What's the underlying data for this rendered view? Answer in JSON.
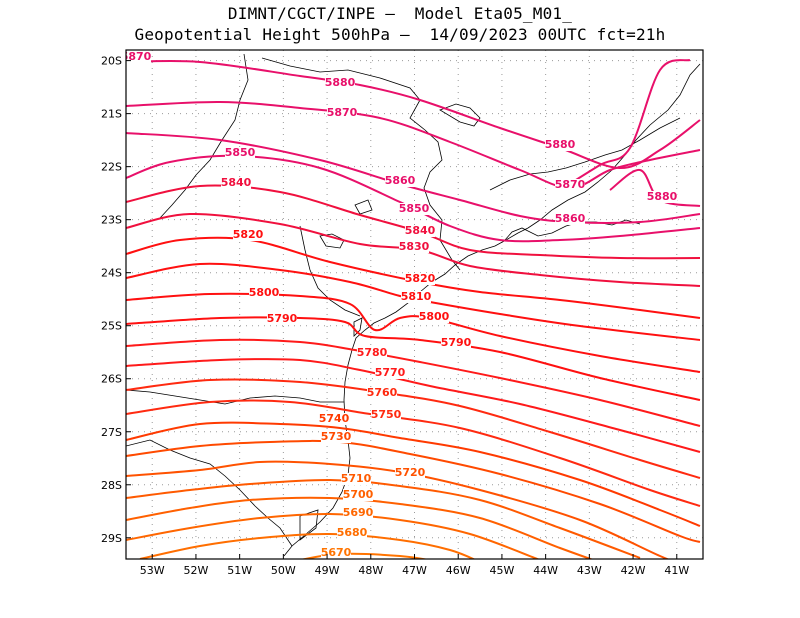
{
  "header": {
    "line1": "DIMNT/CGCT/INPE –  Model Eta05_M01_",
    "line2": "Geopotential Height 500hPa –  14/09/2023 00UTC fct=21h"
  },
  "axes": {
    "lat_labels": [
      "20S",
      "21S",
      "22S",
      "23S",
      "24S",
      "25S",
      "26S",
      "27S",
      "28S",
      "29S"
    ],
    "lon_labels": [
      "53W",
      "52W",
      "51W",
      "50W",
      "49W",
      "48W",
      "47W",
      "46W",
      "45W",
      "44W",
      "43W",
      "42W",
      "41W"
    ],
    "lon_range": [
      -53.6,
      -40.4
    ],
    "lat_range": [
      -29.4,
      -19.8
    ],
    "grid": true
  },
  "colors": {
    "high": "#e8106a",
    "mid": "#ff1a1a",
    "low": "#ff6a00",
    "coast": "#000000",
    "grid": "#9a9a9a"
  },
  "contours": [
    {
      "value": 5880,
      "label": "5880",
      "color": "#e8106a"
    },
    {
      "value": 5870,
      "label": "5870",
      "color": "#e8106a"
    },
    {
      "value": 5860,
      "label": "5860",
      "color": "#e8106a"
    },
    {
      "value": 5850,
      "label": "5850",
      "color": "#e8106a"
    },
    {
      "value": 5840,
      "label": "5840",
      "color": "#f0103e"
    },
    {
      "value": 5830,
      "label": "5830",
      "color": "#f0103e"
    },
    {
      "value": 5820,
      "label": "5820",
      "color": "#ff1010"
    },
    {
      "value": 5810,
      "label": "5810",
      "color": "#ff1010"
    },
    {
      "value": 5800,
      "label": "5800",
      "color": "#ff1010"
    },
    {
      "value": 5790,
      "label": "5790",
      "color": "#ff1010"
    },
    {
      "value": 5780,
      "label": "5780",
      "color": "#ff1a1a"
    },
    {
      "value": 5770,
      "label": "5770",
      "color": "#ff1a1a"
    },
    {
      "value": 5760,
      "label": "5760",
      "color": "#ff2a10"
    },
    {
      "value": 5750,
      "label": "5750",
      "color": "#ff2a10"
    },
    {
      "value": 5740,
      "label": "5740",
      "color": "#ff3a00"
    },
    {
      "value": 5730,
      "label": "5730",
      "color": "#ff4a00"
    },
    {
      "value": 5720,
      "label": "5720",
      "color": "#ff5200"
    },
    {
      "value": 5710,
      "label": "5710",
      "color": "#ff5a00"
    },
    {
      "value": 5700,
      "label": "5700",
      "color": "#ff6000"
    },
    {
      "value": 5690,
      "label": "5690",
      "color": "#ff6600"
    },
    {
      "value": 5680,
      "label": "5680",
      "color": "#ff6e00"
    },
    {
      "value": 5670,
      "label": "5670",
      "color": "#ff7400"
    }
  ]
}
